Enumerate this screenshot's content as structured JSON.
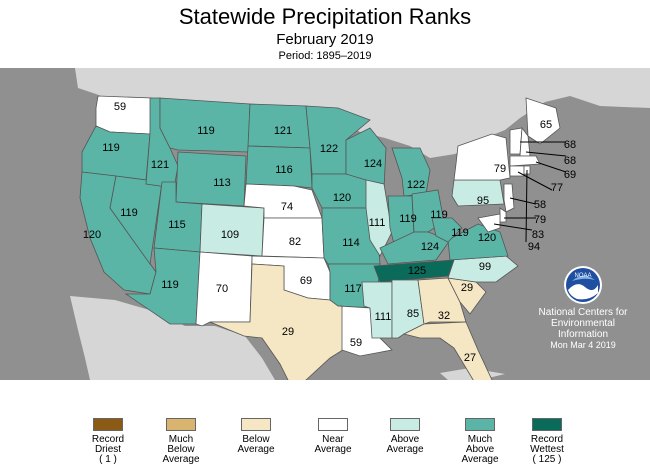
{
  "title": "Statewide Precipitation Ranks",
  "subtitle": "February 2019",
  "period": "Period: 1895–2019",
  "colors": {
    "record_driest": "#8b5a14",
    "much_below": "#d9b46e",
    "below": "#f5e6c4",
    "near": "#ffffff",
    "above": "#c8ece4",
    "much_above": "#5bb5a6",
    "record_wettest": "#0b6b5b",
    "background": "#909090",
    "neighbors": "#d6d6d6"
  },
  "states": [
    {
      "id": "WA",
      "rank": "59",
      "cat": "near"
    },
    {
      "id": "OR",
      "rank": "119",
      "cat": "much_above"
    },
    {
      "id": "CA",
      "rank": "120",
      "cat": "much_above"
    },
    {
      "id": "NV",
      "rank": "119",
      "cat": "much_above"
    },
    {
      "id": "ID",
      "rank": "121",
      "cat": "much_above"
    },
    {
      "id": "MT",
      "rank": "119",
      "cat": "much_above"
    },
    {
      "id": "WY",
      "rank": "113",
      "cat": "much_above"
    },
    {
      "id": "UT",
      "rank": "115",
      "cat": "much_above"
    },
    {
      "id": "AZ",
      "rank": "119",
      "cat": "much_above"
    },
    {
      "id": "CO",
      "rank": "109",
      "cat": "above"
    },
    {
      "id": "NM",
      "rank": "70",
      "cat": "near"
    },
    {
      "id": "ND",
      "rank": "121",
      "cat": "much_above"
    },
    {
      "id": "SD",
      "rank": "116",
      "cat": "much_above"
    },
    {
      "id": "NE",
      "rank": "74",
      "cat": "near"
    },
    {
      "id": "KS",
      "rank": "82",
      "cat": "near"
    },
    {
      "id": "OK",
      "rank": "69",
      "cat": "near"
    },
    {
      "id": "TX",
      "rank": "29",
      "cat": "below"
    },
    {
      "id": "MN",
      "rank": "122",
      "cat": "much_above"
    },
    {
      "id": "IA",
      "rank": "120",
      "cat": "much_above"
    },
    {
      "id": "MO",
      "rank": "114",
      "cat": "much_above"
    },
    {
      "id": "AR",
      "rank": "117",
      "cat": "much_above"
    },
    {
      "id": "LA",
      "rank": "59",
      "cat": "near"
    },
    {
      "id": "WI",
      "rank": "124",
      "cat": "much_above"
    },
    {
      "id": "IL",
      "rank": "111",
      "cat": "above"
    },
    {
      "id": "MI",
      "rank": "122",
      "cat": "much_above"
    },
    {
      "id": "IN",
      "rank": "119",
      "cat": "much_above"
    },
    {
      "id": "OH",
      "rank": "119",
      "cat": "much_above"
    },
    {
      "id": "KY",
      "rank": "124",
      "cat": "much_above"
    },
    {
      "id": "TN",
      "rank": "125",
      "cat": "record_wettest"
    },
    {
      "id": "MS",
      "rank": "111",
      "cat": "above"
    },
    {
      "id": "AL",
      "rank": "85",
      "cat": "above"
    },
    {
      "id": "GA",
      "rank": "32",
      "cat": "below"
    },
    {
      "id": "FL",
      "rank": "27",
      "cat": "below"
    },
    {
      "id": "SC",
      "rank": "29",
      "cat": "below"
    },
    {
      "id": "NC",
      "rank": "99",
      "cat": "above"
    },
    {
      "id": "VA",
      "rank": "120",
      "cat": "much_above"
    },
    {
      "id": "WV",
      "rank": "119",
      "cat": "much_above"
    },
    {
      "id": "PA",
      "rank": "95",
      "cat": "above"
    },
    {
      "id": "NY",
      "rank": "79",
      "cat": "near"
    },
    {
      "id": "ME",
      "rank": "65",
      "cat": "near"
    },
    {
      "id": "VT",
      "rank": "68",
      "cat": "near"
    },
    {
      "id": "NH",
      "rank": "68",
      "cat": "near"
    },
    {
      "id": "MA",
      "rank": "69",
      "cat": "near"
    },
    {
      "id": "CT",
      "rank": "77",
      "cat": "near"
    },
    {
      "id": "NJ",
      "rank": "58",
      "cat": "near"
    },
    {
      "id": "DE",
      "rank": "79",
      "cat": "near"
    },
    {
      "id": "MD",
      "rank": "83",
      "cat": "near"
    },
    {
      "id": "RI",
      "rank": "94",
      "cat": "near"
    }
  ],
  "noaa": {
    "logo_text": "NOAA",
    "line1": "National Centers for",
    "line2": "Environmental",
    "line3": "Information",
    "date": "Mon Mar  4 2019"
  },
  "legend": [
    {
      "label": "Record",
      "sub1": "Driest",
      "sub2": "( 1 )",
      "cat": "record_driest"
    },
    {
      "label": "Much",
      "sub1": "Below",
      "sub2": "Average",
      "cat": "much_below"
    },
    {
      "label": "Below",
      "sub1": "Average",
      "sub2": "",
      "cat": "below"
    },
    {
      "label": "Near",
      "sub1": "Average",
      "sub2": "",
      "cat": "near"
    },
    {
      "label": "Above",
      "sub1": "Average",
      "sub2": "",
      "cat": "above"
    },
    {
      "label": "Much",
      "sub1": "Above",
      "sub2": "Average",
      "cat": "much_above"
    },
    {
      "label": "Record",
      "sub1": "Wettest",
      "sub2": "( 125 )",
      "cat": "record_wettest"
    }
  ]
}
